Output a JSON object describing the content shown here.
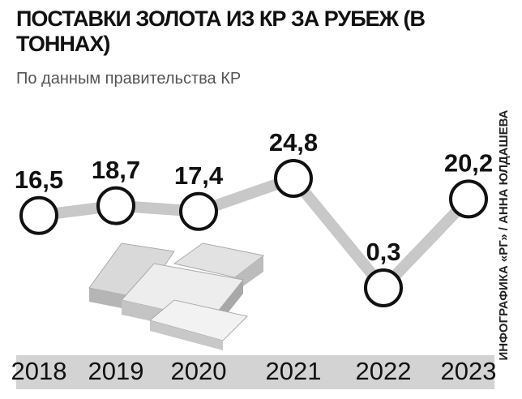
{
  "chart_data": {
    "type": "line",
    "title": "ПОСТАВКИ ЗОЛОТА ИЗ КР ЗА РУБЕЖ (В ТОННАХ)",
    "subtitle": "По данным правительства КР",
    "credit": "ИНФОГРАФИКА «РГ» / АННА ЮЛДАШЕВА",
    "categories": [
      "2018",
      "2019",
      "2020",
      "2021",
      "2022",
      "2023"
    ],
    "values": [
      16.5,
      18.7,
      17.4,
      24.8,
      0.3,
      20.2
    ],
    "value_labels": [
      "16,5",
      "18,7",
      "17,4",
      "24,8",
      "0,3",
      "20,2"
    ],
    "color": "#c8c8c8"
  }
}
